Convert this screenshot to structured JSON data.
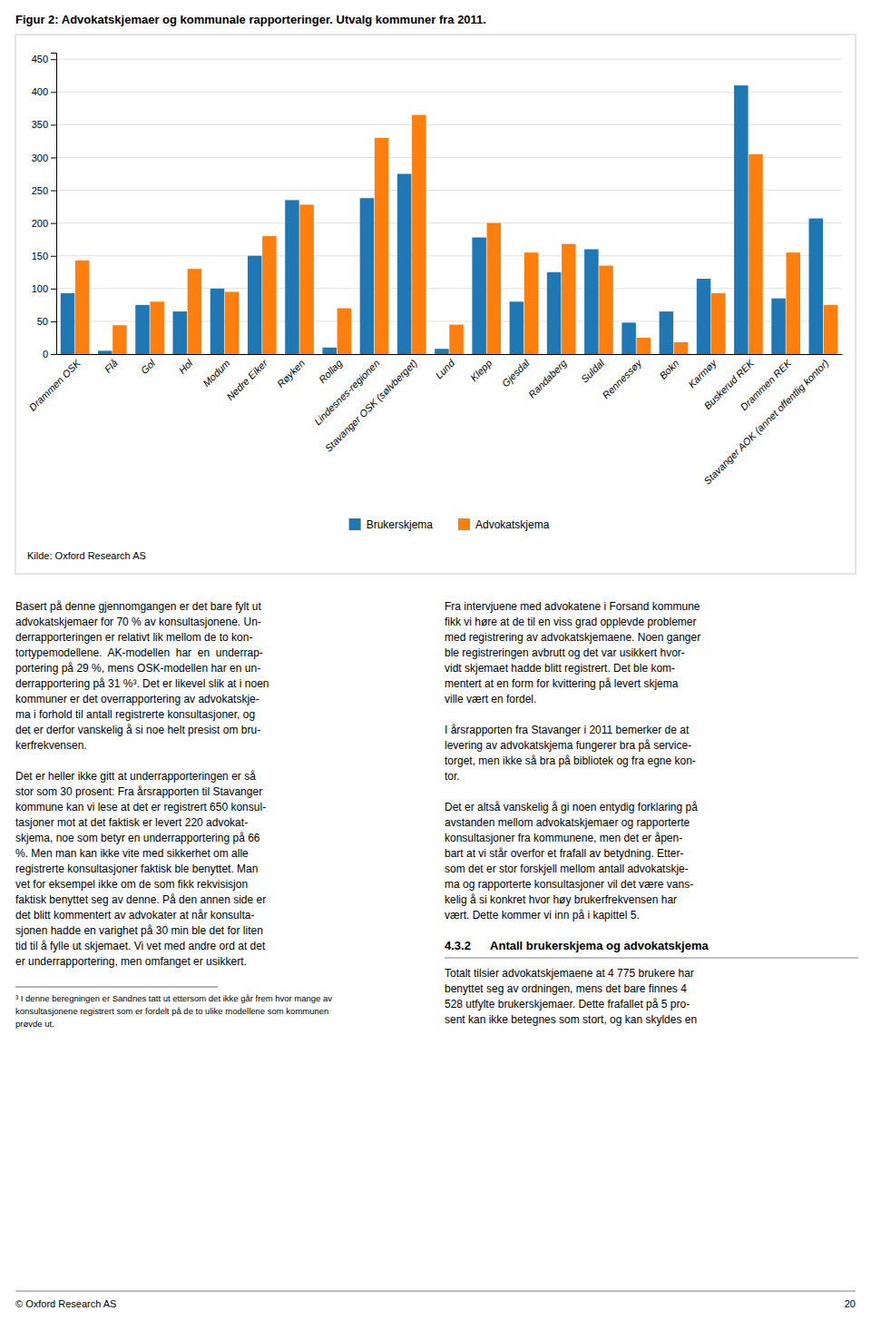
{
  "chart_data": {
    "type": "bar",
    "title": "Figur 2: Advokatskjemaer og kommunale rapporteringer. Utvalg kommuner fra 2011.",
    "categories": [
      "Drammen OSK",
      "Flå",
      "Gol",
      "Hol",
      "Modum",
      "Nedre Eiker",
      "Røyken",
      "Rollag",
      "Lindesnes-regionen",
      "Stavanger OSK (sølvberget)",
      "Lund",
      "Klepp",
      "Gjesdal",
      "Randaberg",
      "Suldal",
      "Rennessøy",
      "Bokn",
      "Karmøy",
      "Buskerud REK",
      "Drammen REK",
      "Stavanger AOK (annet offentlig kontor)"
    ],
    "series": [
      {
        "name": "Brukerskjema",
        "values": [
          93,
          5,
          75,
          65,
          100,
          150,
          235,
          10,
          238,
          275,
          8,
          178,
          80,
          125,
          160,
          48,
          65,
          115,
          410,
          85,
          207
        ]
      },
      {
        "name": "Advokatskjema",
        "values": [
          143,
          44,
          80,
          130,
          95,
          180,
          228,
          70,
          330,
          365,
          45,
          200,
          155,
          168,
          135,
          25,
          18,
          93,
          305,
          155,
          75
        ]
      }
    ],
    "ylim": [
      0,
      460
    ],
    "yticks": [
      0,
      50,
      100,
      150,
      200,
      250,
      300,
      350,
      400,
      450
    ],
    "grid": true,
    "legend": "bottom",
    "source": "Kilde: Oxford Research AS"
  },
  "text": {
    "body_left_col": [
      [
        "Basert på denne gjennomgangen er det bare fylt ut",
        "advokatskjemaer for 70 % av konsultasjonene. Un-",
        "derrapporteringen er relativt lik mellom de to kon-",
        "tortypemodellene.  AK-modellen  har  en  underrap-",
        "portering på 29 %, mens OSK-modellen har en un-",
        "derrapportering på 31 %³. Det er likevel slik at i noen",
        "kommuner er det overrapportering av advokatskje-",
        "ma i forhold til antall registrerte konsultasjoner, og",
        "det er derfor vanskelig å si noe helt presist om bru-",
        "kerfrekvensen."
      ],
      [
        "Det er heller ikke gitt at underrapporteringen er så",
        "stor som 30 prosent: Fra årsrapporten til Stavanger",
        "kommune kan vi lese at det er registrert 650 konsul-",
        "tasjoner mot at det faktisk er levert 220 advokat-",
        "skjema, noe som betyr en underrapportering på 66",
        "%. Men man kan ikke vite med sikkerhet om alle",
        "registrerte konsultasjoner faktisk ble benyttet. Man",
        "vet for eksempel ikke om de som fikk rekvisisjon",
        "faktisk benyttet seg av denne. På den annen side er",
        "det blitt kommentert av advokater at når konsulta-",
        "sjonen hadde en varighet på 30 min ble det for liten",
        "tid til å fylle ut skjemaet. Vi vet med andre ord at det",
        "er underrapportering, men omfanget er usikkert."
      ]
    ],
    "body_right_col": [
      [
        "Fra intervjuene med advokatene i Forsand kommune",
        "fikk vi høre at de til en viss grad opplevde problemer",
        "med registrering av advokatskjemaene. Noen ganger",
        "ble registreringen avbrutt og det var usikkert hvor-",
        "vidt skjemaet hadde blitt registrert. Det ble kom-",
        "mentert at en form for kvittering på levert skjema",
        "ville vært en fordel."
      ],
      [
        "I årsrapporten fra Stavanger i 2011 bemerker de at",
        "levering av advokatskjema fungerer bra på service-",
        "torget, men ikke så bra på bibliotek og fra egne kon-",
        "tor."
      ],
      [
        "Det er altså vanskelig å gi noen entydig forklaring på",
        "avstanden mellom advokatskjemaer og rapporterte",
        "konsultasjoner fra kommunene, men det er åpen-",
        "bart at vi står overfor et frafall av betydning. Etter-",
        "som det er stor forskjell mellom antall advokatskje-",
        "ma og rapporterte konsultasjoner vil det være vans-",
        "kelig å si konkret hvor høy brukerfrekvensen har",
        "vært. Dette kommer vi inn på i kapittel 5."
      ]
    ],
    "footnote": [
      "³ I denne beregningen er Sandnes tatt ut ettersom det ikke går frem hvor mange av",
      "konsultasjonene registrert som er fordelt på de to ulike modellene som kommunen",
      "prøvde ut."
    ],
    "section_header": "4.3.2      Antall brukerskjema og advokatskjema",
    "section_body": [
      "Totalt tilsier advokatskjemaene at 4 775 brukere har",
      "benyttet seg av ordningen, mens det bare finnes 4",
      "528 utfylte brukerskjemaer. Dette frafallet på 5 pro-",
      "sent kan ikke betegnes som stort, og kan skyldes en"
    ],
    "footer_left": "© Oxford Research AS",
    "footer_right": "20"
  }
}
